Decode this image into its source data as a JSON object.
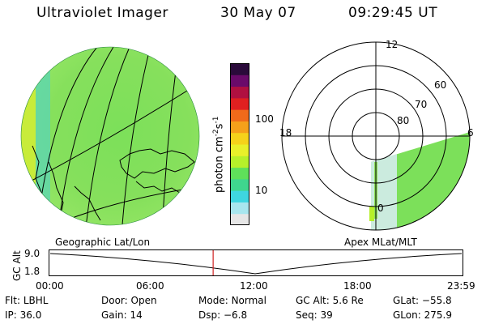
{
  "header": {
    "title": "Ultraviolet Imager",
    "date": "30 May 07",
    "time": "09:29:45 UT"
  },
  "colorbar": {
    "unit_label": "photon cm",
    "unit_exp1": "-2",
    "unit_s": "s",
    "unit_exp2": "-1",
    "ticks": [
      {
        "label": "100",
        "value": 100
      },
      {
        "label": "10",
        "value": 10
      }
    ],
    "colors": [
      "#e6e6e6",
      "#a8e6ee",
      "#3fd6e0",
      "#3fd68e",
      "#5fe05a",
      "#b6f02a",
      "#e8f02a",
      "#f5d21a",
      "#f5a01a",
      "#f06a1a",
      "#e02020",
      "#b01040",
      "#6a0a6a",
      "#2a0a3a"
    ]
  },
  "polar": {
    "mlt_labels": {
      "top": "12",
      "left": "18",
      "right": "6",
      "bottom": "0"
    },
    "lat_labels": [
      "60",
      "70",
      "80"
    ]
  },
  "plot": {
    "left_title": "Geographic Lat/Lon",
    "right_title": "Apex MLat/MLT",
    "ylabel": "GC Alt",
    "yticks": [
      "9.0",
      "1.8"
    ],
    "xticks": [
      "00:00",
      "06:00",
      "12:00",
      "18:00",
      "23:59"
    ],
    "cursor_time": "09:29:45",
    "cursor_color": "#d02020"
  },
  "info": {
    "flt_key": "Flt:",
    "flt_val": "LBHL",
    "door_key": "Door:",
    "door_val": "Open",
    "mode_key": "Mode:",
    "mode_val": "Normal",
    "gcalt_key": "GC Alt:",
    "gcalt_val": "5.6 Re",
    "glat_key": "GLat:",
    "glat_val": "−55.8",
    "ip_key": "IP:",
    "ip_val": "36.0",
    "gain_key": "Gain:",
    "gain_val": "14",
    "dsp_key": "Dsp:",
    "dsp_val": "−6.8",
    "seq_key": "Seq:",
    "seq_val": "39",
    "glon_key": "GLon:",
    "glon_val": "275.9"
  }
}
